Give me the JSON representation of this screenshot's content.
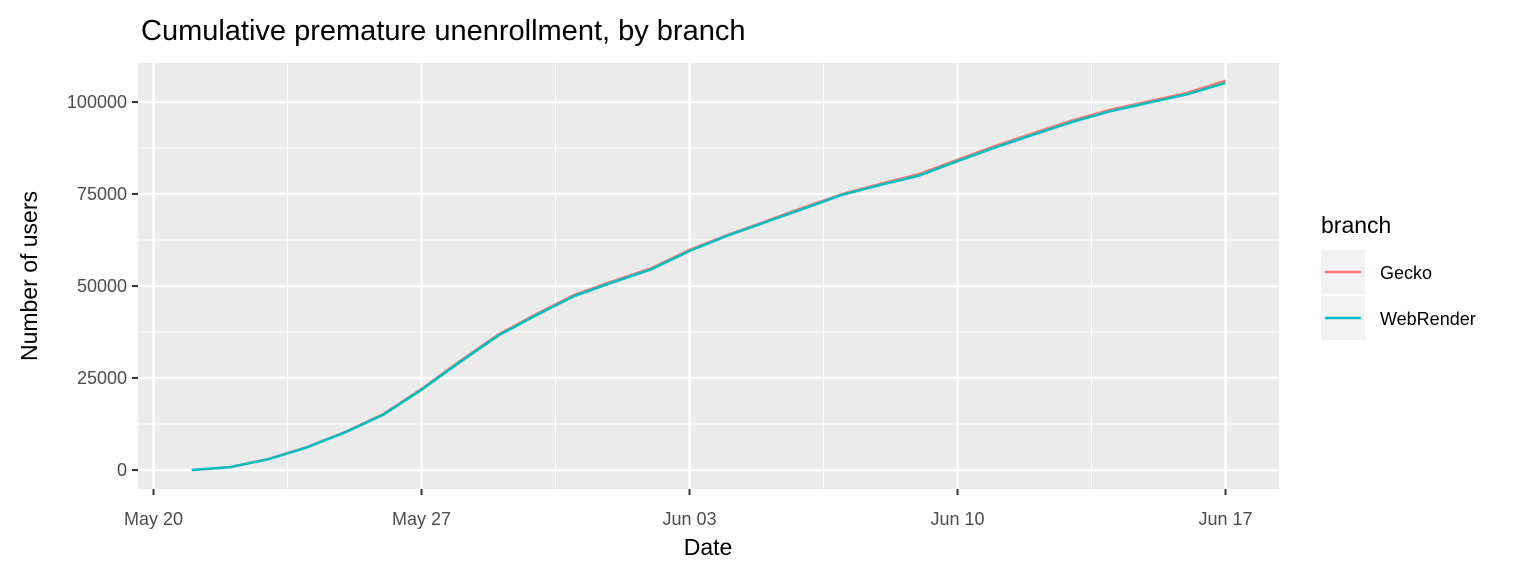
{
  "chart_data": {
    "type": "line",
    "title": "Cumulative premature unenrollment, by branch",
    "xlabel": "Date",
    "ylabel": "Number of users",
    "x_tick_labels": [
      "May 20",
      "May 27",
      "Jun 03",
      "Jun 10",
      "Jun 17"
    ],
    "y_tick_labels": [
      "0",
      "25000",
      "50000",
      "75000",
      "100000"
    ],
    "y_ticks": [
      0,
      25000,
      50000,
      75000,
      100000
    ],
    "xlim": [
      "2019-05-20",
      "2019-06-17"
    ],
    "ylim": [
      -5000,
      110000
    ],
    "x": [
      "2019-05-21",
      "2019-05-22",
      "2019-05-23",
      "2019-05-24",
      "2019-05-25",
      "2019-05-26",
      "2019-05-27",
      "2019-05-28",
      "2019-05-29",
      "2019-05-30",
      "2019-05-31",
      "2019-06-01",
      "2019-06-02",
      "2019-06-03",
      "2019-06-04",
      "2019-06-05",
      "2019-06-06",
      "2019-06-07",
      "2019-06-08",
      "2019-06-09",
      "2019-06-10",
      "2019-06-11",
      "2019-06-12",
      "2019-06-13",
      "2019-06-14",
      "2019-06-15",
      "2019-06-16",
      "2019-06-17"
    ],
    "series": [
      {
        "name": "Gecko",
        "color": "#F8766D",
        "values": [
          0,
          800,
          3000,
          6200,
          10300,
          15200,
          22000,
          29600,
          36800,
          42400,
          47600,
          51300,
          54800,
          59800,
          63900,
          67600,
          71400,
          75000,
          77800,
          80400,
          84300,
          88100,
          91600,
          95000,
          97900,
          100200,
          102500,
          105800
        ]
      },
      {
        "name": "WebRender",
        "color": "#00BFC4",
        "values": [
          0,
          800,
          2900,
          6100,
          10200,
          15000,
          21800,
          29300,
          36500,
          42100,
          47300,
          51000,
          54500,
          59500,
          63700,
          67400,
          71100,
          74800,
          77500,
          80000,
          83900,
          87700,
          91200,
          94600,
          97500,
          99800,
          102100,
          105200
        ]
      }
    ],
    "legend": {
      "title": "branch",
      "position": "right"
    },
    "grid": true,
    "colors": {
      "panel": "#EBEBEB",
      "grid": "#FFFFFF",
      "tick": "#333333"
    }
  }
}
